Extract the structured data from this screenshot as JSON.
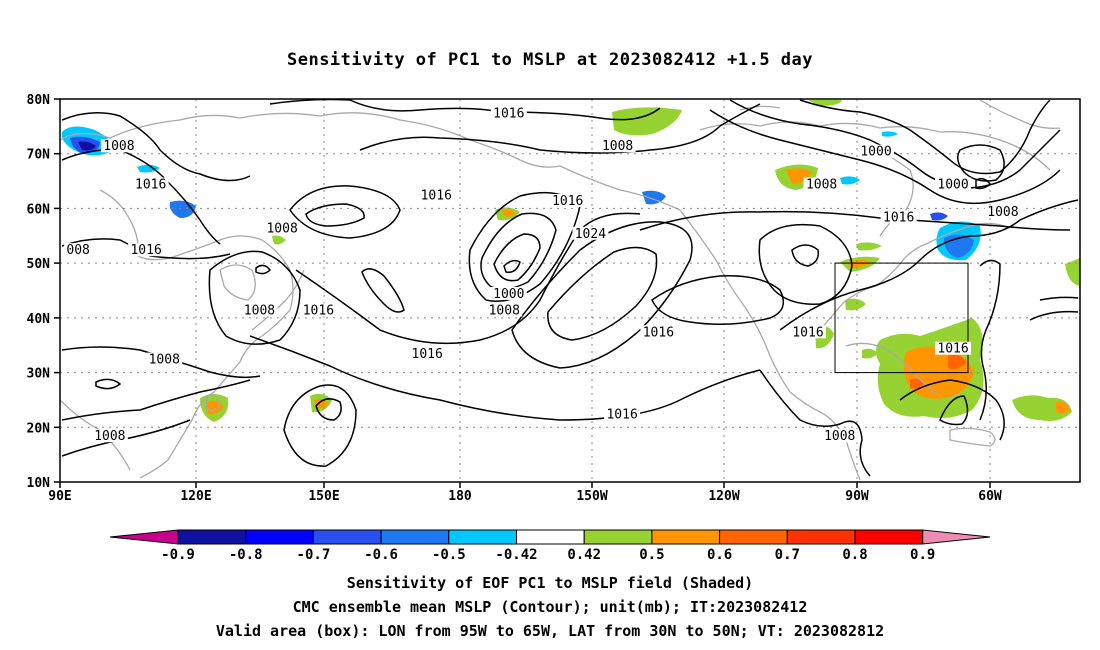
{
  "title": "Sensitivity of PC1 to MSLP at 2023082412 +1.5 day",
  "map": {
    "lat_labels": [
      "80N",
      "70N",
      "60N",
      "50N",
      "40N",
      "30N",
      "20N",
      "10N"
    ],
    "lon_labels": [
      "90E",
      "120E",
      "150E",
      "180",
      "150W",
      "120W",
      "90W",
      "60W"
    ],
    "lat_range": [
      10,
      80
    ],
    "lon_range_east_deg": [
      90,
      315
    ],
    "grid": "dotted",
    "valid_box": {
      "lon_w": 95,
      "lon_e": 65,
      "lat_s": 30,
      "lat_n": 50
    },
    "contour_labels": [
      {
        "text": "1016",
        "lon": 189,
        "lat": 77
      },
      {
        "text": "1008",
        "lon": 213,
        "lat": 71
      },
      {
        "text": "1000",
        "lon": 270,
        "lat": 70
      },
      {
        "text": "1000",
        "lon": 287,
        "lat": 64
      },
      {
        "text": "1008",
        "lon": 103,
        "lat": 71
      },
      {
        "text": "1016",
        "lon": 110,
        "lat": 64
      },
      {
        "text": "1008",
        "lon": 258,
        "lat": 64
      },
      {
        "text": "1016",
        "lon": 173,
        "lat": 62
      },
      {
        "text": "1016",
        "lon": 202,
        "lat": 61
      },
      {
        "text": "1016",
        "lon": 275,
        "lat": 58
      },
      {
        "text": "1008",
        "lon": 298,
        "lat": 59
      },
      {
        "text": "1008",
        "lon": 139,
        "lat": 56
      },
      {
        "text": "1024",
        "lon": 207,
        "lat": 55
      },
      {
        "text": "008",
        "lon": 94,
        "lat": 52
      },
      {
        "text": "1016",
        "lon": 109,
        "lat": 52
      },
      {
        "text": "1000",
        "lon": 189,
        "lat": 44
      },
      {
        "text": "1008",
        "lon": 188,
        "lat": 41
      },
      {
        "text": "1008",
        "lon": 134,
        "lat": 41
      },
      {
        "text": "1016",
        "lon": 147,
        "lat": 41
      },
      {
        "text": "1016",
        "lon": 222,
        "lat": 37
      },
      {
        "text": "1016",
        "lon": 255,
        "lat": 37
      },
      {
        "text": "1016",
        "lon": 171,
        "lat": 33
      },
      {
        "text": "1016",
        "lon": 287,
        "lat": 34
      },
      {
        "text": "1008",
        "lon": 113,
        "lat": 32
      },
      {
        "text": "1016",
        "lon": 214,
        "lat": 22
      },
      {
        "text": "1008",
        "lon": 101,
        "lat": 18
      },
      {
        "text": "1008",
        "lon": 262,
        "lat": 18
      }
    ]
  },
  "colorbar": {
    "labels": [
      "-0.9",
      "-0.8",
      "-0.7",
      "-0.6",
      "-0.5",
      "-0.42",
      "0.42",
      "0.5",
      "0.6",
      "0.7",
      "0.8",
      "0.9"
    ],
    "colors": [
      "#c8008c",
      "#1010a0",
      "#0000ff",
      "#2850f0",
      "#1e78f0",
      "#00c8ff",
      "#ffffff",
      "#96d232",
      "#ff9600",
      "#ff6400",
      "#ff3200",
      "#ff0000",
      "#f08cb4"
    ]
  },
  "caption": {
    "line1": "Sensitivity of EOF PC1 to MSLP field (Shaded)",
    "line2": "CMC ensemble mean MSLP (Contour); unit(mb); IT:2023082412",
    "line3": "Valid area (box): LON from 95W to 65W, LAT from 30N to 50N; VT: 2023082812"
  }
}
